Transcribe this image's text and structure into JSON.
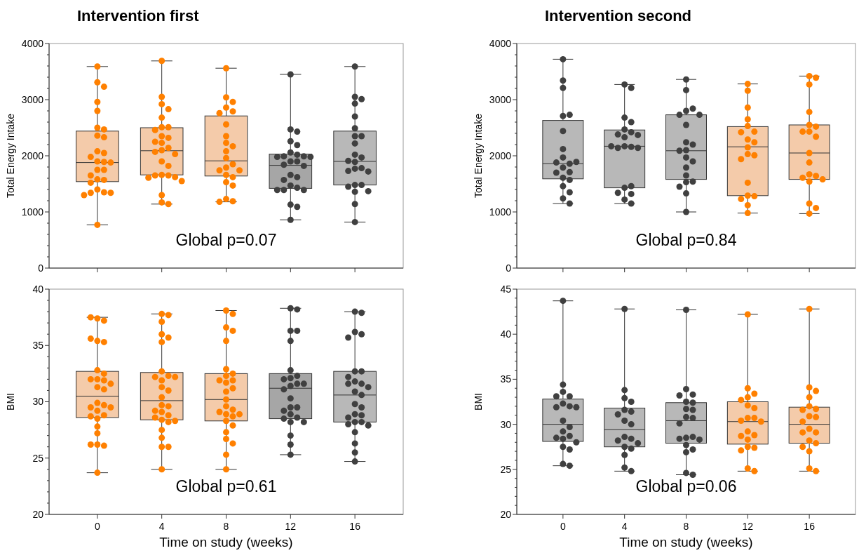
{
  "chart_data": [
    {
      "type": "box",
      "title": "Intervention first",
      "ylabel": "Total Energy Intake",
      "categories": [
        "0",
        "4",
        "8",
        "12",
        "16"
      ],
      "colors": [
        "#f4cbaa",
        "#f4cbaa",
        "#f4cbaa",
        "#a6a6a6",
        "#b8b8b8"
      ],
      "boxes": [
        {
          "low": 770,
          "q1": 1540,
          "median": 1880,
          "q3": 2440,
          "high": 3590
        },
        {
          "low": 1140,
          "q1": 1660,
          "median": 2090,
          "q3": 2500,
          "high": 3690
        },
        {
          "low": 1180,
          "q1": 1640,
          "median": 1910,
          "q3": 2710,
          "high": 3560
        },
        {
          "low": 860,
          "q1": 1420,
          "median": 1830,
          "q3": 2030,
          "high": 3450
        },
        {
          "low": 820,
          "q1": 1480,
          "median": 1900,
          "q3": 2440,
          "high": 3590
        }
      ],
      "series": [
        {
          "type": "scatter",
          "color": "#ff8000",
          "x": [
            "0",
            "0",
            "0",
            "0",
            "0",
            "0",
            "0",
            "0",
            "0",
            "0",
            "0",
            "0",
            "0",
            "0",
            "0",
            "0",
            "0",
            "0",
            "0",
            "0",
            "0",
            "0",
            "0",
            "0",
            "0",
            "0",
            "0"
          ],
          "values": [
            3590,
            3310,
            3230,
            2960,
            2800,
            2500,
            2470,
            2360,
            2330,
            2080,
            2050,
            1980,
            1900,
            1890,
            1880,
            1750,
            1750,
            1650,
            1580,
            1570,
            1520,
            1400,
            1350,
            1340,
            1340,
            1300,
            770
          ]
        },
        {
          "type": "scatter",
          "color": "#ff8000",
          "x": [
            "4",
            "4",
            "4",
            "4",
            "4",
            "4",
            "4",
            "4",
            "4",
            "4",
            "4",
            "4",
            "4",
            "4",
            "4",
            "4",
            "4",
            "4",
            "4",
            "4",
            "4",
            "4",
            "4",
            "4",
            "4",
            "4",
            "4"
          ],
          "values": [
            3690,
            3050,
            2920,
            2830,
            2680,
            2510,
            2510,
            2460,
            2350,
            2320,
            2250,
            2230,
            2140,
            2100,
            2070,
            2030,
            1900,
            1820,
            1660,
            1650,
            1650,
            1620,
            1610,
            1550,
            1300,
            1170,
            1140
          ]
        },
        {
          "type": "scatter",
          "color": "#ff8000",
          "x": [
            "8",
            "8",
            "8",
            "8",
            "8",
            "8",
            "8",
            "8",
            "8",
            "8",
            "8",
            "8",
            "8",
            "8",
            "8",
            "8",
            "8",
            "8",
            "8",
            "8",
            "8",
            "8",
            "8"
          ],
          "values": [
            3560,
            3040,
            2960,
            2860,
            2790,
            2760,
            2560,
            2350,
            2230,
            2170,
            2080,
            1960,
            1850,
            1790,
            1740,
            1740,
            1660,
            1620,
            1530,
            1470,
            1230,
            1190,
            1180
          ]
        },
        {
          "type": "scatter",
          "color": "#404040",
          "x": [
            "12",
            "12",
            "12",
            "12",
            "12",
            "12",
            "12",
            "12",
            "12",
            "12",
            "12",
            "12",
            "12",
            "12",
            "12",
            "12",
            "12",
            "12",
            "12",
            "12",
            "12",
            "12",
            "12",
            "12",
            "12",
            "12"
          ],
          "values": [
            3450,
            2470,
            2430,
            2260,
            2190,
            2060,
            2020,
            1990,
            1990,
            1980,
            1980,
            1900,
            1900,
            1840,
            1820,
            1660,
            1620,
            1570,
            1470,
            1430,
            1390,
            1390,
            1390,
            1130,
            1090,
            860
          ]
        },
        {
          "type": "scatter",
          "color": "#404040",
          "x": [
            "16",
            "16",
            "16",
            "16",
            "16",
            "16",
            "16",
            "16",
            "16",
            "16",
            "16",
            "16",
            "16",
            "16",
            "16",
            "16",
            "16",
            "16",
            "16",
            "16",
            "16",
            "16",
            "16",
            "16"
          ],
          "values": [
            3590,
            3050,
            3010,
            2930,
            2700,
            2490,
            2350,
            2350,
            2220,
            2020,
            1970,
            1910,
            1890,
            1780,
            1770,
            1730,
            1720,
            1480,
            1480,
            1450,
            1370,
            1360,
            1140,
            820
          ]
        }
      ],
      "ylim": [
        0,
        4000
      ],
      "yticks": [
        0,
        {
          "value": 200,
          "label": null
        },
        {
          "value": 400,
          "label": null
        },
        {
          "value": 600,
          "label": null
        },
        {
          "value": 800,
          "label": null
        },
        1000,
        {
          "value": 1200,
          "label": null
        },
        {
          "value": 1400,
          "label": null
        },
        {
          "value": 1600,
          "label": null
        },
        {
          "value": 1800,
          "label": null
        },
        2000,
        {
          "value": 2200,
          "label": null
        },
        {
          "value": 2400,
          "label": null
        },
        {
          "value": 2600,
          "label": null
        },
        {
          "value": 2800,
          "label": null
        },
        3000,
        {
          "value": 3200,
          "label": null
        },
        {
          "value": 3400,
          "label": null
        },
        {
          "value": 3600,
          "label": null
        },
        {
          "value": 3800,
          "label": null
        },
        4000
      ],
      "tick_labels": "y",
      "marker": "circle",
      "annotations": [
        "Global p=0.07"
      ]
    },
    {
      "type": "box",
      "title": "Intervention second",
      "ylabel": "Total Energy Intake",
      "categories": [
        "0",
        "4",
        "8",
        "12",
        "16"
      ],
      "colors": [
        "#b8b8b8",
        "#b8b8b8",
        "#b8b8b8",
        "#f4cbaa",
        "#f4cbaa"
      ],
      "boxes": [
        {
          "low": 1150,
          "q1": 1590,
          "median": 1860,
          "q3": 2630,
          "high": 3720
        },
        {
          "low": 1150,
          "q1": 1430,
          "median": 2170,
          "q3": 2460,
          "high": 3270
        },
        {
          "low": 1000,
          "q1": 1580,
          "median": 2090,
          "q3": 2730,
          "high": 3360
        },
        {
          "low": 980,
          "q1": 1290,
          "median": 2160,
          "q3": 2520,
          "high": 3280
        },
        {
          "low": 970,
          "q1": 1580,
          "median": 2050,
          "q3": 2550,
          "high": 3420
        }
      ],
      "series": [
        {
          "type": "scatter",
          "color": "#404040",
          "x": [
            "0",
            "0",
            "0",
            "0",
            "0",
            "0",
            "0",
            "0",
            "0",
            "0",
            "0",
            "0",
            "0",
            "0",
            "0",
            "0",
            "0",
            "0",
            "0",
            "0"
          ],
          "values": [
            3720,
            3340,
            3210,
            2710,
            2730,
            2440,
            2120,
            1970,
            1860,
            1880,
            1890,
            1790,
            1710,
            1700,
            1610,
            1570,
            1460,
            1350,
            1240,
            1150
          ]
        },
        {
          "type": "scatter",
          "color": "#404040",
          "x": [
            "4",
            "4",
            "4",
            "4",
            "4",
            "4",
            "4",
            "4",
            "4",
            "4",
            "4",
            "4",
            "4",
            "4",
            "4",
            "4",
            "4",
            "4",
            "4",
            "4"
          ],
          "values": [
            3270,
            3210,
            2680,
            2600,
            2470,
            2420,
            2380,
            2370,
            2330,
            2170,
            2160,
            2140,
            2140,
            2170,
            1430,
            1460,
            1320,
            1340,
            1220,
            1150
          ]
        },
        {
          "type": "scatter",
          "color": "#404040",
          "x": [
            "8",
            "8",
            "8",
            "8",
            "8",
            "8",
            "8",
            "8",
            "8",
            "8",
            "8",
            "8",
            "8",
            "8",
            "8",
            "8",
            "8",
            "8",
            "8",
            "8"
          ],
          "values": [
            3360,
            3170,
            2800,
            2840,
            2730,
            2730,
            2550,
            2240,
            2200,
            2100,
            2090,
            1970,
            1900,
            1790,
            1650,
            1540,
            1530,
            1450,
            1330,
            1000
          ]
        },
        {
          "type": "scatter",
          "color": "#ff8000",
          "x": [
            "12",
            "12",
            "12",
            "12",
            "12",
            "12",
            "12",
            "12",
            "12",
            "12",
            "12",
            "12",
            "12",
            "12",
            "12",
            "12",
            "12",
            "12",
            "12"
          ],
          "values": [
            3280,
            3160,
            2860,
            2650,
            2530,
            2430,
            2420,
            2290,
            2240,
            2150,
            2030,
            2010,
            1940,
            1520,
            1290,
            1280,
            1230,
            1120,
            980
          ]
        },
        {
          "type": "scatter",
          "color": "#ff8000",
          "x": [
            "16",
            "16",
            "16",
            "16",
            "16",
            "16",
            "16",
            "16",
            "16",
            "16",
            "16",
            "16",
            "16",
            "16",
            "16",
            "16",
            "16",
            "16",
            "16"
          ],
          "values": [
            3420,
            3390,
            3270,
            2780,
            2550,
            2520,
            2430,
            2430,
            2340,
            2050,
            1880,
            1670,
            1640,
            1610,
            1580,
            1540,
            1150,
            1070,
            970
          ]
        }
      ],
      "ylim": [
        0,
        4000
      ],
      "yticks": [
        0,
        {
          "value": 200,
          "label": null
        },
        {
          "value": 400,
          "label": null
        },
        {
          "value": 600,
          "label": null
        },
        {
          "value": 800,
          "label": null
        },
        1000,
        {
          "value": 1200,
          "label": null
        },
        {
          "value": 1400,
          "label": null
        },
        {
          "value": 1600,
          "label": null
        },
        {
          "value": 1800,
          "label": null
        },
        2000,
        {
          "value": 2200,
          "label": null
        },
        {
          "value": 2400,
          "label": null
        },
        {
          "value": 2600,
          "label": null
        },
        {
          "value": 2800,
          "label": null
        },
        3000,
        {
          "value": 3200,
          "label": null
        },
        {
          "value": 3400,
          "label": null
        },
        {
          "value": 3600,
          "label": null
        },
        {
          "value": 3800,
          "label": null
        },
        4000
      ],
      "tick_labels": "y",
      "marker": "circle",
      "annotations": [
        "Global p=0.84"
      ]
    },
    {
      "type": "box",
      "ylabel": "BMI",
      "xlabel": "Time on study (weeks)",
      "categories": [
        "0",
        "4",
        "8",
        "12",
        "16"
      ],
      "colors": [
        "#f4cbaa",
        "#f4cbaa",
        "#f4cbaa",
        "#a6a6a6",
        "#b8b8b8"
      ],
      "boxes": [
        {
          "low": 23.7,
          "q1": 28.6,
          "median": 30.5,
          "q3": 32.7,
          "high": 37.5
        },
        {
          "low": 24.0,
          "q1": 28.4,
          "median": 30.1,
          "q3": 32.6,
          "high": 37.8
        },
        {
          "low": 24.0,
          "q1": 28.3,
          "median": 30.2,
          "q3": 32.5,
          "high": 38.1
        },
        {
          "low": 25.3,
          "q1": 28.5,
          "median": 31.2,
          "q3": 32.5,
          "high": 38.3
        },
        {
          "low": 24.7,
          "q1": 28.2,
          "median": 30.6,
          "q3": 32.7,
          "high": 38.0
        }
      ],
      "series": [
        {
          "type": "scatter",
          "color": "#ff8000",
          "x": [
            "0",
            "0",
            "0",
            "0",
            "0",
            "0",
            "0",
            "0",
            "0",
            "0",
            "0",
            "0",
            "0",
            "0",
            "0",
            "0",
            "0",
            "0",
            "0",
            "0",
            "0",
            "0",
            "0",
            "0",
            "0",
            "0",
            "0",
            "0"
          ],
          "values": [
            37.4,
            37.2,
            37.5,
            35.4,
            35.3,
            35.6,
            32.8,
            32.5,
            32.0,
            32.0,
            31.9,
            31.6,
            31.3,
            31.1,
            29.9,
            29.7,
            29.5,
            29.5,
            29.2,
            28.8,
            28.7,
            28.5,
            27.8,
            27.2,
            26.2,
            26.1,
            26.2,
            23.7
          ]
        },
        {
          "type": "scatter",
          "color": "#ff8000",
          "x": [
            "4",
            "4",
            "4",
            "4",
            "4",
            "4",
            "4",
            "4",
            "4",
            "4",
            "4",
            "4",
            "4",
            "4",
            "4",
            "4",
            "4",
            "4",
            "4",
            "4",
            "4",
            "4",
            "4",
            "4",
            "4",
            "4",
            "4",
            "4"
          ],
          "values": [
            37.8,
            37.7,
            37.1,
            36.0,
            35.7,
            35.3,
            32.7,
            32.3,
            32.2,
            32.2,
            31.9,
            31.3,
            31.0,
            30.4,
            29.7,
            29.6,
            29.2,
            29.1,
            28.8,
            28.6,
            28.4,
            28.3,
            28.2,
            27.5,
            26.8,
            26.0,
            26.0,
            24.0
          ]
        },
        {
          "type": "scatter",
          "color": "#ff8000",
          "x": [
            "8",
            "8",
            "8",
            "8",
            "8",
            "8",
            "8",
            "8",
            "8",
            "8",
            "8",
            "8",
            "8",
            "8",
            "8",
            "8",
            "8",
            "8",
            "8",
            "8",
            "8",
            "8",
            "8",
            "8",
            "8",
            "8",
            "8"
          ],
          "values": [
            38.1,
            37.8,
            36.6,
            36.3,
            35.4,
            32.9,
            32.5,
            32.3,
            31.9,
            31.9,
            31.7,
            31.2,
            30.9,
            30.2,
            29.6,
            29.3,
            29.1,
            28.9,
            28.9,
            28.7,
            28.3,
            27.9,
            27.3,
            26.7,
            26.3,
            25.3,
            24.0
          ]
        },
        {
          "type": "scatter",
          "color": "#404040",
          "x": [
            "12",
            "12",
            "12",
            "12",
            "12",
            "12",
            "12",
            "12",
            "12",
            "12",
            "12",
            "12",
            "12",
            "12",
            "12",
            "12",
            "12",
            "12",
            "12",
            "12",
            "12",
            "12",
            "12",
            "12",
            "12"
          ],
          "values": [
            38.3,
            38.2,
            36.3,
            36.3,
            35.4,
            32.8,
            32.3,
            32.1,
            32.0,
            31.6,
            31.6,
            31.4,
            31.1,
            30.3,
            29.5,
            29.5,
            29.2,
            28.9,
            28.6,
            28.5,
            28.2,
            28.2,
            27.0,
            26.2,
            25.3
          ]
        },
        {
          "type": "scatter",
          "color": "#404040",
          "x": [
            "16",
            "16",
            "16",
            "16",
            "16",
            "16",
            "16",
            "16",
            "16",
            "16",
            "16",
            "16",
            "16",
            "16",
            "16",
            "16",
            "16",
            "16",
            "16",
            "16",
            "16",
            "16",
            "16",
            "16",
            "16",
            "16",
            "16"
          ],
          "values": [
            38.0,
            37.9,
            36.2,
            36.0,
            35.7,
            32.7,
            32.7,
            32.2,
            31.8,
            31.6,
            31.6,
            31.3,
            30.9,
            30.6,
            29.8,
            29.5,
            28.9,
            28.8,
            28.6,
            28.2,
            28.2,
            28.0,
            27.9,
            27.3,
            26.3,
            25.5,
            24.7
          ]
        }
      ],
      "ylim": [
        20,
        40
      ],
      "yticks": [
        20,
        {
          "value": 21,
          "label": null
        },
        {
          "value": 22,
          "label": null
        },
        {
          "value": 23,
          "label": null
        },
        {
          "value": 24,
          "label": null
        },
        25,
        {
          "value": 26,
          "label": null
        },
        {
          "value": 27,
          "label": null
        },
        {
          "value": 28,
          "label": null
        },
        {
          "value": 29,
          "label": null
        },
        30,
        {
          "value": 31,
          "label": null
        },
        {
          "value": 32,
          "label": null
        },
        {
          "value": 33,
          "label": null
        },
        {
          "value": 34,
          "label": null
        },
        35,
        {
          "value": 36,
          "label": null
        },
        {
          "value": 37,
          "label": null
        },
        {
          "value": 38,
          "label": null
        },
        {
          "value": 39,
          "label": null
        },
        40
      ],
      "marker": "circle",
      "annotations": [
        "Global p=0.61"
      ]
    },
    {
      "type": "box",
      "ylabel": "BMI",
      "xlabel": "Time on study (weeks)",
      "categories": [
        "0",
        "4",
        "8",
        "12",
        "16"
      ],
      "colors": [
        "#b8b8b8",
        "#b8b8b8",
        "#b8b8b8",
        "#f4cbaa",
        "#f4cbaa"
      ],
      "boxes": [
        {
          "low": 25.4,
          "q1": 28.1,
          "median": 30.0,
          "q3": 32.8,
          "high": 43.7
        },
        {
          "low": 24.8,
          "q1": 27.5,
          "median": 29.4,
          "q3": 31.8,
          "high": 42.8
        },
        {
          "low": 24.4,
          "q1": 27.9,
          "median": 30.4,
          "q3": 32.4,
          "high": 42.7
        },
        {
          "low": 24.8,
          "q1": 27.8,
          "median": 30.3,
          "q3": 32.5,
          "high": 42.2
        },
        {
          "low": 24.8,
          "q1": 27.9,
          "median": 30.0,
          "q3": 31.9,
          "high": 42.8
        }
      ],
      "series": [
        {
          "type": "scatter",
          "color": "#404040",
          "x": [
            "0",
            "0",
            "0",
            "0",
            "0",
            "0",
            "0",
            "0",
            "0",
            "0",
            "0",
            "0",
            "0",
            "0",
            "0",
            "0",
            "0",
            "0",
            "0",
            "0"
          ],
          "values": [
            43.7,
            34.4,
            33.6,
            33.1,
            33.1,
            32.3,
            32.0,
            31.9,
            31.9,
            30.4,
            29.7,
            29.2,
            28.7,
            28.5,
            28.4,
            28.0,
            27.5,
            27.2,
            25.6,
            25.4
          ]
        },
        {
          "type": "scatter",
          "color": "#404040",
          "x": [
            "4",
            "4",
            "4",
            "4",
            "4",
            "4",
            "4",
            "4",
            "4",
            "4",
            "4",
            "4",
            "4",
            "4",
            "4",
            "4",
            "4",
            "4"
          ],
          "values": [
            42.8,
            33.8,
            32.9,
            32.5,
            31.6,
            31.4,
            31.1,
            30.4,
            30.0,
            28.6,
            28.4,
            28.2,
            27.9,
            27.5,
            27.3,
            26.6,
            25.2,
            24.8
          ]
        },
        {
          "type": "scatter",
          "color": "#404040",
          "x": [
            "8",
            "8",
            "8",
            "8",
            "8",
            "8",
            "8",
            "8",
            "8",
            "8",
            "8",
            "8",
            "8",
            "8",
            "8",
            "8",
            "8",
            "8",
            "8",
            "8"
          ],
          "values": [
            42.7,
            33.9,
            33.3,
            33.2,
            32.5,
            32.4,
            31.7,
            31.6,
            30.8,
            30.7,
            30.1,
            28.5,
            28.6,
            28.4,
            28.3,
            27.7,
            27.2,
            26.9,
            24.6,
            24.4
          ]
        },
        {
          "type": "scatter",
          "color": "#ff8000",
          "x": [
            "12",
            "12",
            "12",
            "12",
            "12",
            "12",
            "12",
            "12",
            "12",
            "12",
            "12",
            "12",
            "12",
            "12",
            "12",
            "12",
            "12",
            "12",
            "12",
            "12"
          ],
          "values": [
            42.2,
            34.0,
            33.4,
            33.0,
            32.7,
            32.1,
            31.8,
            30.7,
            30.7,
            30.4,
            30.3,
            29.2,
            28.8,
            28.7,
            28.3,
            27.5,
            27.4,
            27.1,
            25.1,
            24.8
          ]
        },
        {
          "type": "scatter",
          "color": "#ff8000",
          "x": [
            "16",
            "16",
            "16",
            "16",
            "16",
            "16",
            "16",
            "16",
            "16",
            "16",
            "16",
            "16",
            "16",
            "16",
            "16",
            "16",
            "16",
            "16",
            "16"
          ],
          "values": [
            42.8,
            34.1,
            33.7,
            33.0,
            32.0,
            31.7,
            31.6,
            30.9,
            30.8,
            30.3,
            29.5,
            29.1,
            29.1,
            28.2,
            27.9,
            27.5,
            27.0,
            25.1,
            24.8
          ]
        }
      ],
      "ylim": [
        20,
        45
      ],
      "yticks": [
        20,
        {
          "value": 21,
          "label": null
        },
        {
          "value": 22,
          "label": null
        },
        {
          "value": 23,
          "label": null
        },
        {
          "value": 24,
          "label": null
        },
        25,
        {
          "value": 26,
          "label": null
        },
        {
          "value": 27,
          "label": null
        },
        {
          "value": 28,
          "label": null
        },
        {
          "value": 29,
          "label": null
        },
        30,
        {
          "value": 31,
          "label": null
        },
        {
          "value": 32,
          "label": null
        },
        {
          "value": 33,
          "label": null
        },
        {
          "value": 34,
          "label": null
        },
        35,
        {
          "value": 36,
          "label": null
        },
        {
          "value": 37,
          "label": null
        },
        {
          "value": 38,
          "label": null
        },
        {
          "value": 39,
          "label": null
        },
        40,
        {
          "value": 41,
          "label": null
        },
        {
          "value": 42,
          "label": null
        },
        {
          "value": 43,
          "label": null
        },
        {
          "value": 44,
          "label": null
        },
        45
      ],
      "marker": "circle",
      "annotations": [
        "Global p=0.06"
      ]
    }
  ]
}
